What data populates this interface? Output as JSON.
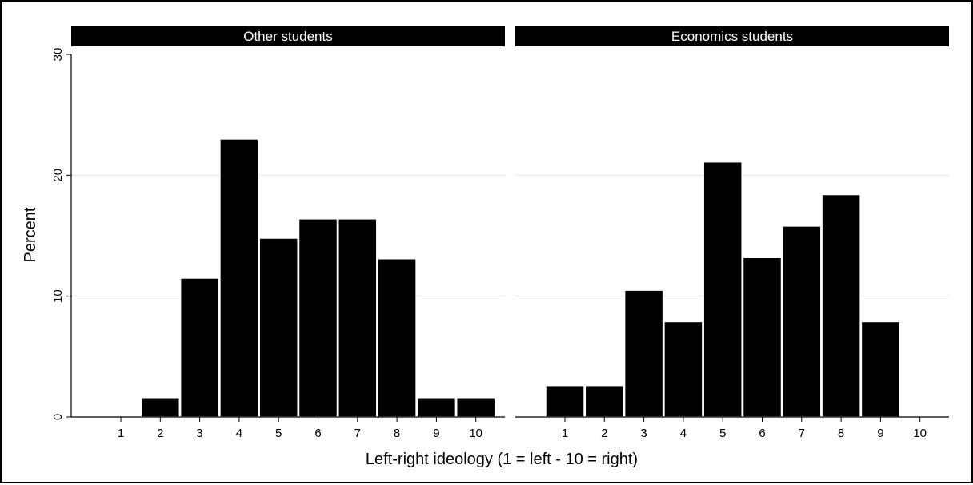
{
  "chart_data": {
    "type": "bar",
    "xlabel": "Left-right ideology (1 = left - 10 = right)",
    "ylabel": "Percent",
    "ylim": [
      0,
      30
    ],
    "yticks": [
      "0",
      "10",
      "20",
      "30"
    ],
    "categories": [
      "1",
      "2",
      "3",
      "4",
      "5",
      "6",
      "7",
      "8",
      "9",
      "10"
    ],
    "grid": true,
    "colors": {
      "bar": "#000000",
      "bar_edge": "#ffffff",
      "panel_header": "#000000",
      "grid": "#e6e6e6"
    },
    "panels": [
      {
        "title": "Other students",
        "values": [
          0,
          1.6,
          11.5,
          23.0,
          14.8,
          16.4,
          16.4,
          13.1,
          1.6,
          1.6
        ]
      },
      {
        "title": "Economics students",
        "values": [
          2.6,
          2.6,
          10.5,
          7.9,
          21.1,
          13.2,
          15.8,
          18.4,
          7.9,
          0
        ]
      }
    ]
  }
}
